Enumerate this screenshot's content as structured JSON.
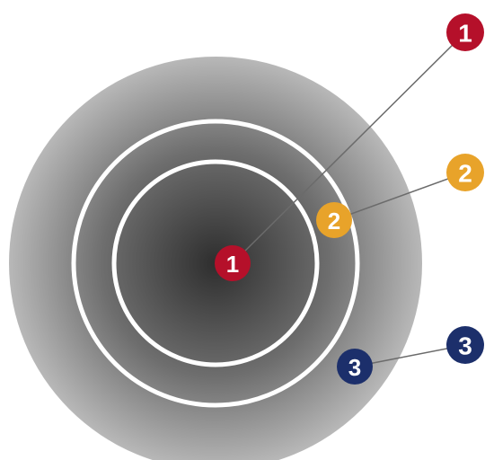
{
  "markers": {
    "inner": {
      "label": "1",
      "color": "#b5102a"
    },
    "middle": {
      "label": "2",
      "color": "#e8a32a"
    },
    "outer": {
      "label": "3",
      "color": "#1c2f6b"
    }
  },
  "callouts": {
    "inner": {
      "label": "1",
      "color": "#b5102a"
    },
    "middle": {
      "label": "2",
      "color": "#e8a32a"
    },
    "outer": {
      "label": "3",
      "color": "#1c2f6b"
    }
  },
  "colors": {
    "disc_center": "#2e2e2e",
    "disc_edge": "#b8b8b8",
    "ring_stroke": "#ffffff",
    "leader_line": "#6b6b6b"
  }
}
